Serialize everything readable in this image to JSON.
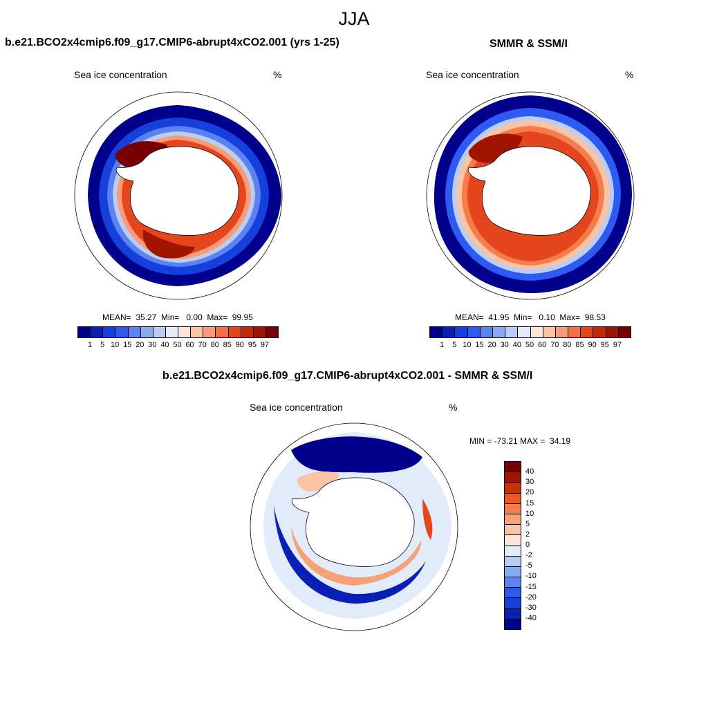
{
  "figure": {
    "season": "JJA"
  },
  "panels": [
    {
      "title": "b.e21.BCO2x4cmip6.f09_g17.CMIP6-abrupt4xCO2.001 (yrs 1-25)",
      "variable": "Sea ice concentration",
      "units": "%",
      "stats": "MEAN=  35.27  Min=   0.00  Max=  99.95"
    },
    {
      "title": "SMMR & SSM/I",
      "variable": "Sea ice concentration",
      "units": "%",
      "stats": "MEAN=  41.95  Min=   0.10  Max=  98.53"
    },
    {
      "title": "b.e21.BCO2x4cmip6.f09_g17.CMIP6-abrupt4xCO2.001 - SMMR & SSM/I",
      "variable": "Sea ice concentration",
      "units": "%",
      "stats": "MIN = -73.21 MAX =  34.19"
    }
  ],
  "colorbar_abs": {
    "labels": [
      "1",
      "5",
      "10",
      "15",
      "20",
      "30",
      "40",
      "50",
      "60",
      "70",
      "80",
      "85",
      "90",
      "95",
      "97"
    ],
    "colors": [
      "#00008c",
      "#0a1fb4",
      "#1640dc",
      "#2d5af0",
      "#5a82f0",
      "#8caaf0",
      "#b9cdf5",
      "#e1ebfa",
      "#fde6d7",
      "#fcc3a5",
      "#fa9b78",
      "#f56e46",
      "#e6461e",
      "#c3280a",
      "#a01400",
      "#780000"
    ]
  },
  "colorbar_diff": {
    "labels": [
      "40",
      "30",
      "20",
      "15",
      "10",
      "5",
      "2",
      "0",
      "-2",
      "-5",
      "-10",
      "-15",
      "-20",
      "-30",
      "-40"
    ],
    "colors": [
      "#780000",
      "#a01400",
      "#c8320a",
      "#ef5a23",
      "#f57d4b",
      "#f8a078",
      "#fac3a5",
      "#fde6d7",
      "#e1ebfa",
      "#b9cdf5",
      "#8caaf0",
      "#5a82f0",
      "#2d5af0",
      "#1640dc",
      "#0a1fb4",
      "#00008c"
    ]
  }
}
